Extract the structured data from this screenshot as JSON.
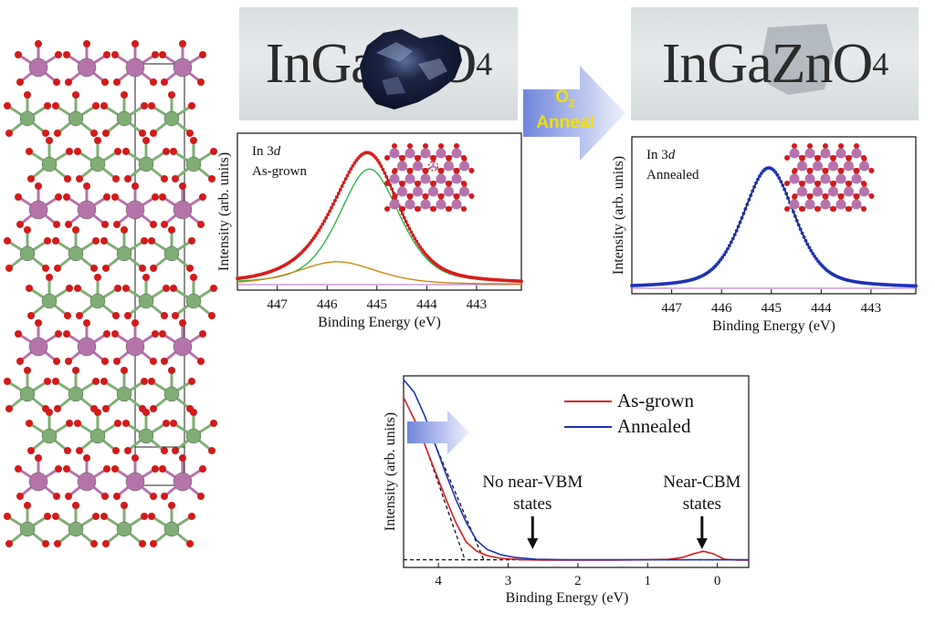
{
  "colors": {
    "in_atom": "#b673ab",
    "ga_zn_atom": "#7fae74",
    "o_atom": "#d21a1a",
    "as_grown": "#d81c1c",
    "annealed": "#1e32b4",
    "fit_green": "#2cb94a",
    "fit_orange": "#c98a12",
    "background_line": "#b06bc4",
    "arrow_blue": "#7f95e0",
    "anneal_text": "#f2e000"
  },
  "photos": {
    "as_grown_label": "InGaZnO",
    "annealed_label": "InGaZnO",
    "subscript": "4"
  },
  "anneal_arrow": {
    "gas": "O",
    "gas_subscript": "2",
    "word": "Anneal"
  },
  "chart_data": [
    {
      "type": "line",
      "panel": "xps-as-grown",
      "xlabel": "Binding Energy (eV)",
      "ylabel": "Intensity (arb. units)",
      "xlim": [
        447.8,
        442.1
      ],
      "xticks": [
        447,
        446,
        445,
        444,
        443
      ],
      "label_line1_prefix": "In 3",
      "label_line1_italic": "d",
      "label_line2": "As-grown",
      "peaks": [
        {
          "name": "main",
          "center_eV": 445.15,
          "height": 0.96,
          "fwhm": 1.45
        },
        {
          "name": "shoulder",
          "center_eV": 445.8,
          "height": 0.19,
          "fwhm": 1.9
        }
      ]
    },
    {
      "type": "line",
      "panel": "xps-annealed",
      "xlabel": "Binding Energy (eV)",
      "ylabel": "Intensity (arb. units)",
      "xlim": [
        447.8,
        442.1
      ],
      "xticks": [
        447,
        446,
        445,
        444,
        443
      ],
      "label_line1_prefix": "In 3",
      "label_line1_italic": "d",
      "label_line2": "Annealed",
      "peaks": [
        {
          "name": "main",
          "center_eV": 445.05,
          "height": 1.0,
          "fwhm": 1.25
        }
      ]
    },
    {
      "type": "line",
      "panel": "valence-band",
      "xlabel": "Binding Energy (eV)",
      "ylabel": "Intensity (arb. units)",
      "xlim": [
        4.5,
        -0.45
      ],
      "xticks": [
        4,
        3,
        2,
        1,
        0
      ],
      "series": [
        {
          "name": "As-grown",
          "color": "#d81c1c",
          "x": [
            4.5,
            4.3,
            4.1,
            3.9,
            3.75,
            3.6,
            3.45,
            3.3,
            3.1,
            2.8,
            2.5,
            2.0,
            1.5,
            1.0,
            0.7,
            0.5,
            0.35,
            0.2,
            0.05,
            -0.1,
            -0.3,
            -0.45
          ],
          "y": [
            0.92,
            0.76,
            0.56,
            0.36,
            0.22,
            0.11,
            0.06,
            0.035,
            0.02,
            0.012,
            0.01,
            0.01,
            0.01,
            0.012,
            0.015,
            0.025,
            0.045,
            0.06,
            0.045,
            0.015,
            0.01,
            0.01
          ]
        },
        {
          "name": "Annealed",
          "color": "#1e32b4",
          "x": [
            4.5,
            4.35,
            4.2,
            4.05,
            3.9,
            3.75,
            3.6,
            3.45,
            3.3,
            3.1,
            2.9,
            2.6,
            2.2,
            1.8,
            1.4,
            1.0,
            0.6,
            0.2,
            -0.2,
            -0.45
          ],
          "y": [
            1.02,
            0.95,
            0.82,
            0.66,
            0.5,
            0.35,
            0.22,
            0.12,
            0.07,
            0.04,
            0.025,
            0.015,
            0.012,
            0.012,
            0.012,
            0.012,
            0.012,
            0.012,
            0.012,
            0.012
          ]
        }
      ],
      "annotations": {
        "no_vbm_line1": "No near-VBM",
        "no_vbm_line2": "states",
        "no_vbm_x_eV": 2.65,
        "cbm_line1": "Near-CBM",
        "cbm_line2": "states",
        "cbm_x_eV": 0.22
      }
    }
  ]
}
